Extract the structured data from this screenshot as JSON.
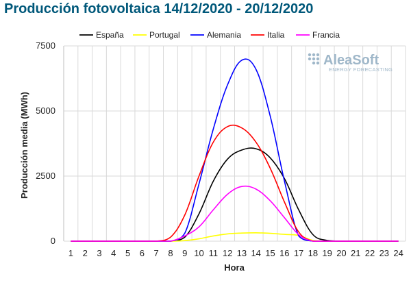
{
  "title": "Producción fotovoltaica 14/12/2020 - 20/12/2020",
  "logo": {
    "name": "AleaSoft",
    "tagline": "ENERGY FORECASTING"
  },
  "colors": {
    "title": "#00587a",
    "grid": "#d9d9d9",
    "axis": "#bfbfbf",
    "logo": "#9fb7c9"
  },
  "chart_data": {
    "type": "line",
    "xlabel": "Hora",
    "ylabel": "Producción media (MWh)",
    "x": [
      1,
      2,
      3,
      4,
      5,
      6,
      7,
      8,
      9,
      10,
      11,
      12,
      13,
      14,
      15,
      16,
      17,
      18,
      19,
      20,
      21,
      22,
      23,
      24
    ],
    "xlim": [
      1,
      24
    ],
    "ylim": [
      0,
      7500
    ],
    "yticks": [
      0,
      2500,
      5000,
      7500
    ],
    "grid": "vertical",
    "legend_position": "top",
    "series": [
      {
        "name": "España",
        "color": "#000000",
        "values": [
          0,
          0,
          0,
          0,
          0,
          0,
          0,
          0,
          150,
          1050,
          2300,
          3150,
          3500,
          3550,
          3200,
          2400,
          1200,
          250,
          30,
          0,
          0,
          0,
          0,
          0
        ]
      },
      {
        "name": "Portugal",
        "color": "#ffff00",
        "values": [
          0,
          0,
          0,
          0,
          0,
          0,
          0,
          0,
          20,
          90,
          200,
          280,
          310,
          320,
          300,
          260,
          220,
          30,
          0,
          0,
          0,
          0,
          0,
          0
        ]
      },
      {
        "name": "Alemania",
        "color": "#0000ff",
        "values": [
          0,
          0,
          0,
          0,
          0,
          0,
          0,
          0,
          300,
          2200,
          4300,
          6000,
          6950,
          6600,
          4800,
          2300,
          200,
          0,
          0,
          0,
          0,
          0,
          0,
          0
        ]
      },
      {
        "name": "Italia",
        "color": "#ff0000",
        "values": [
          0,
          0,
          0,
          0,
          0,
          0,
          0,
          150,
          1000,
          2500,
          3800,
          4400,
          4350,
          3800,
          2800,
          1500,
          350,
          0,
          0,
          0,
          0,
          0,
          0,
          0
        ]
      },
      {
        "name": "Francia",
        "color": "#ff00ff",
        "values": [
          0,
          0,
          0,
          0,
          0,
          0,
          0,
          0,
          200,
          550,
          1200,
          1800,
          2100,
          2000,
          1550,
          900,
          250,
          0,
          0,
          0,
          0,
          0,
          0,
          0
        ]
      }
    ]
  }
}
